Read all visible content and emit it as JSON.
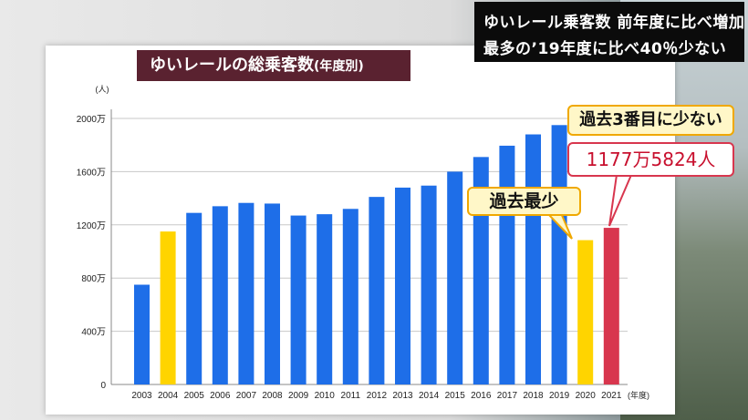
{
  "headline": {
    "line1": "ゆいレール乗客数 前年度に比べ増加",
    "line2": "最多の’19年度に比べ40％少ない"
  },
  "chart_data": {
    "type": "bar",
    "title": "ゆいレールの総乗客数",
    "title_suffix": "(年度別)",
    "ylabel": "(人)",
    "xlabel": "(年度)",
    "ylim": [
      0,
      2000
    ],
    "yticks": [
      "0",
      "400万",
      "800万",
      "1200万",
      "1600万",
      "2000万"
    ],
    "ytick_values": [
      0,
      400,
      800,
      1200,
      1600,
      2000
    ],
    "grid": true,
    "categories": [
      "2003",
      "2004",
      "2005",
      "2006",
      "2007",
      "2008",
      "2009",
      "2010",
      "2011",
      "2012",
      "2013",
      "2014",
      "2015",
      "2016",
      "2017",
      "2018",
      "2019",
      "2020",
      "2021"
    ],
    "values": [
      750,
      1150,
      1290,
      1340,
      1365,
      1360,
      1270,
      1280,
      1320,
      1410,
      1480,
      1495,
      1600,
      1710,
      1795,
      1880,
      1950,
      1085,
      1177.5824
    ],
    "bar_colors": [
      "#1e6ee8",
      "#ffd400",
      "#1e6ee8",
      "#1e6ee8",
      "#1e6ee8",
      "#1e6ee8",
      "#1e6ee8",
      "#1e6ee8",
      "#1e6ee8",
      "#1e6ee8",
      "#1e6ee8",
      "#1e6ee8",
      "#1e6ee8",
      "#1e6ee8",
      "#1e6ee8",
      "#1e6ee8",
      "#1e6ee8",
      "#ffd400",
      "#d8364e"
    ],
    "annotations": {
      "lowest": "過去最少",
      "third_lowest": "過去3番目に少ない",
      "value_2021": "1177万5824人"
    }
  }
}
